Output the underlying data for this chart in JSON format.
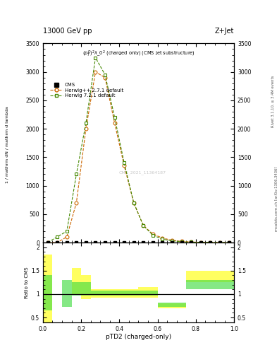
{
  "title_top_left": "13000 GeV pp",
  "title_top_right": "Z+Jet",
  "plot_subtitle": "$(p_T^D)^2\\lambda\\_0^2$ (charged only) (CMS jet substructure)",
  "watermark": "CMS_2021_11364187",
  "xlabel": "pTD2 (charged-only)",
  "ylabel_ratio": "Ratio to CMS",
  "right_label1": "Rivet 3.1.10, ≥ 3.4M events",
  "right_label2": "mcplots.cern.ch [arXiv:1306.3436]",
  "herwig_pp_color": "#cc6600",
  "herwig7_color": "#448800",
  "xlim": [
    0,
    1
  ],
  "ylim_main": [
    0,
    3500
  ],
  "ylim_ratio": [
    0.4,
    2.1
  ],
  "bin_edges": [
    0.0,
    0.05,
    0.1,
    0.15,
    0.2,
    0.25,
    0.3,
    0.35,
    0.4,
    0.45,
    0.5,
    0.55,
    0.6,
    0.65,
    0.7,
    0.75,
    0.8,
    0.85,
    0.9,
    0.95,
    1.0
  ],
  "cms_xc": [
    0.025,
    0.075,
    0.125,
    0.175,
    0.225,
    0.275,
    0.325,
    0.375,
    0.425,
    0.475,
    0.525,
    0.575,
    0.625,
    0.675,
    0.725,
    0.775,
    0.825,
    0.875,
    0.925,
    0.975
  ],
  "cms_yc": [
    0,
    0,
    0,
    0,
    0,
    0,
    0,
    0,
    0,
    0,
    0,
    0,
    0,
    0,
    0,
    0,
    0,
    0,
    0,
    0
  ],
  "hpp_xc": [
    0.025,
    0.075,
    0.125,
    0.175,
    0.225,
    0.275,
    0.325,
    0.375,
    0.425,
    0.475,
    0.525,
    0.575,
    0.625,
    0.675,
    0.725,
    0.775,
    0.825,
    0.875,
    0.925,
    0.975
  ],
  "hpp_yc": [
    0,
    0,
    100,
    700,
    2000,
    3000,
    2900,
    2100,
    1350,
    700,
    300,
    150,
    80,
    40,
    20,
    10,
    5,
    3,
    1,
    0
  ],
  "h7_xc": [
    0.025,
    0.075,
    0.125,
    0.175,
    0.225,
    0.275,
    0.325,
    0.375,
    0.425,
    0.475,
    0.525,
    0.575,
    0.625,
    0.675,
    0.725,
    0.775,
    0.825,
    0.875,
    0.925,
    0.975
  ],
  "h7_yc": [
    0,
    100,
    200,
    1200,
    2100,
    3250,
    2950,
    2200,
    1400,
    700,
    300,
    130,
    60,
    30,
    15,
    7,
    4,
    2,
    1,
    0
  ],
  "yticks_main": [
    0,
    500,
    1000,
    1500,
    2000,
    2500,
    3000,
    3500
  ],
  "ratio_bin_edges": [
    0.0,
    0.05,
    0.1,
    0.15,
    0.2,
    0.25,
    0.3,
    0.35,
    0.4,
    0.45,
    0.5,
    0.55,
    0.6,
    0.65,
    0.7,
    0.75,
    0.8,
    0.85,
    0.9,
    0.95,
    1.0
  ],
  "yellow_lo": [
    0.4,
    1.0,
    1.0,
    1.0,
    0.9,
    0.93,
    0.93,
    0.93,
    0.93,
    0.93,
    0.93,
    0.93,
    0.7,
    0.7,
    0.7,
    1.25,
    1.25,
    1.25,
    1.25,
    1.25
  ],
  "yellow_hi": [
    1.85,
    1.0,
    1.0,
    1.55,
    1.4,
    1.1,
    1.1,
    1.1,
    1.1,
    1.1,
    1.15,
    1.15,
    0.8,
    0.8,
    0.8,
    1.5,
    1.5,
    1.5,
    1.5,
    1.5
  ],
  "green_lo": [
    0.65,
    1.0,
    0.72,
    0.97,
    0.97,
    0.97,
    0.97,
    0.97,
    0.97,
    0.97,
    0.97,
    0.97,
    0.72,
    0.72,
    0.72,
    1.1,
    1.1,
    1.1,
    1.1,
    1.1
  ],
  "green_hi": [
    1.4,
    1.0,
    1.3,
    1.25,
    1.25,
    1.07,
    1.07,
    1.07,
    1.07,
    1.07,
    1.07,
    1.07,
    0.82,
    0.82,
    0.82,
    1.3,
    1.3,
    1.3,
    1.3,
    1.3
  ]
}
